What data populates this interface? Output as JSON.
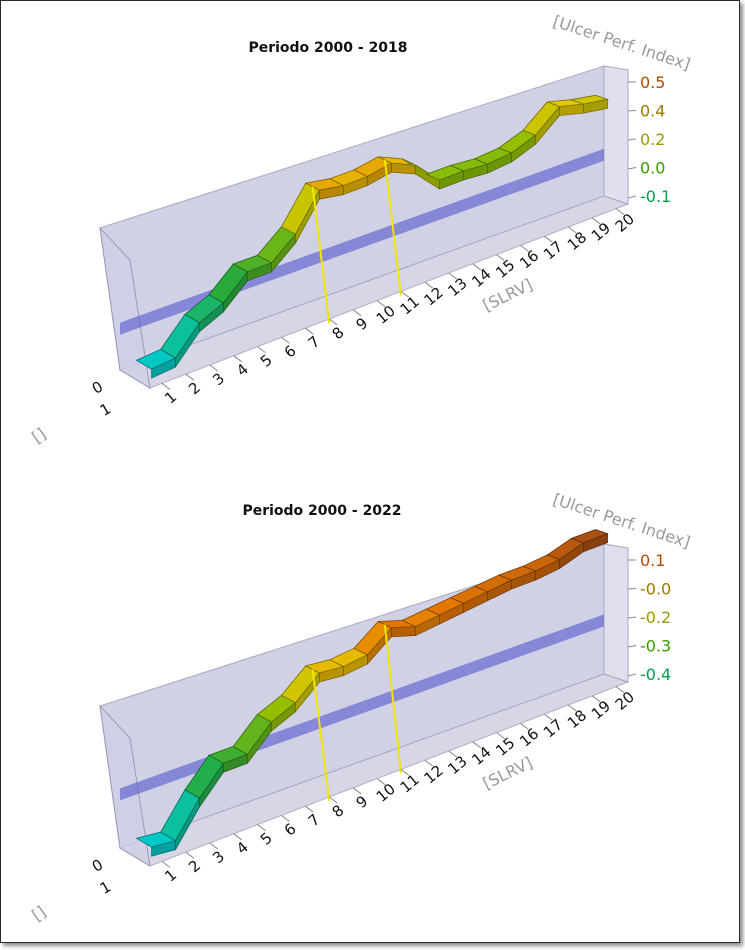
{
  "chart_data": [
    {
      "type": "3d-ribbon-line",
      "title": "Periodo 2000 - 2018",
      "xlabel": "[SLRV]",
      "ylabel": "[Ulcer Perf. Index]",
      "zlabel": "[]",
      "depth_ticks": [
        "0",
        "1"
      ],
      "x": [
        1,
        2,
        3,
        4,
        5,
        6,
        7,
        8,
        9,
        10,
        11,
        12,
        13,
        14,
        15,
        16,
        17,
        18,
        19,
        20
      ],
      "x_ticks": [
        "1",
        "2",
        "3",
        "4",
        "5",
        "6",
        "7",
        "8",
        "9",
        "10",
        "11",
        "12",
        "13",
        "14",
        "15",
        "16",
        "17",
        "18",
        "19",
        "20"
      ],
      "y_ticks": [
        "0.5",
        "0.4",
        "0.2",
        "0.0",
        "-0.1"
      ],
      "y_tick_colors": [
        "#b34a00",
        "#a07800",
        "#9a9a00",
        "#3a9a00",
        "#00a050"
      ],
      "ylim": [
        -0.15,
        0.5
      ],
      "values": [
        -0.15,
        -0.14,
        -0.02,
        0.03,
        0.13,
        0.13,
        0.22,
        0.38,
        0.36,
        0.36,
        0.38,
        0.33,
        0.22,
        0.22,
        0.21,
        0.22,
        0.26,
        0.35,
        0.32,
        0.3
      ],
      "markers_at": [
        8,
        11
      ],
      "reference_band": 0.03
    },
    {
      "type": "3d-ribbon-line",
      "title": "Periodo 2000 - 2022",
      "xlabel": "[SLRV]",
      "ylabel": "[Ulcer Perf. Index]",
      "zlabel": "[]",
      "depth_ticks": [
        "0",
        "1"
      ],
      "x": [
        1,
        2,
        3,
        4,
        5,
        6,
        7,
        8,
        9,
        10,
        11,
        12,
        13,
        14,
        15,
        16,
        17,
        18,
        19,
        20
      ],
      "x_ticks": [
        "1",
        "2",
        "3",
        "4",
        "5",
        "6",
        "7",
        "8",
        "9",
        "10",
        "11",
        "12",
        "13",
        "14",
        "15",
        "16",
        "17",
        "18",
        "19",
        "20"
      ],
      "y_ticks": [
        "0.1",
        "-0.0",
        "-0.2",
        "-0.3",
        "-0.4"
      ],
      "y_tick_colors": [
        "#b34a00",
        "#a07800",
        "#9a9a00",
        "#3a9a00",
        "#00a050"
      ],
      "ylim": [
        -0.45,
        0.1
      ],
      "values": [
        -0.45,
        -0.46,
        -0.33,
        -0.23,
        -0.23,
        -0.14,
        -0.1,
        -0.02,
        -0.03,
        -0.02,
        0.05,
        0.02,
        0.03,
        0.04,
        0.05,
        0.06,
        0.06,
        0.07,
        0.1,
        0.1
      ],
      "markers_at": [
        8,
        11
      ],
      "reference_band": -0.25
    }
  ]
}
